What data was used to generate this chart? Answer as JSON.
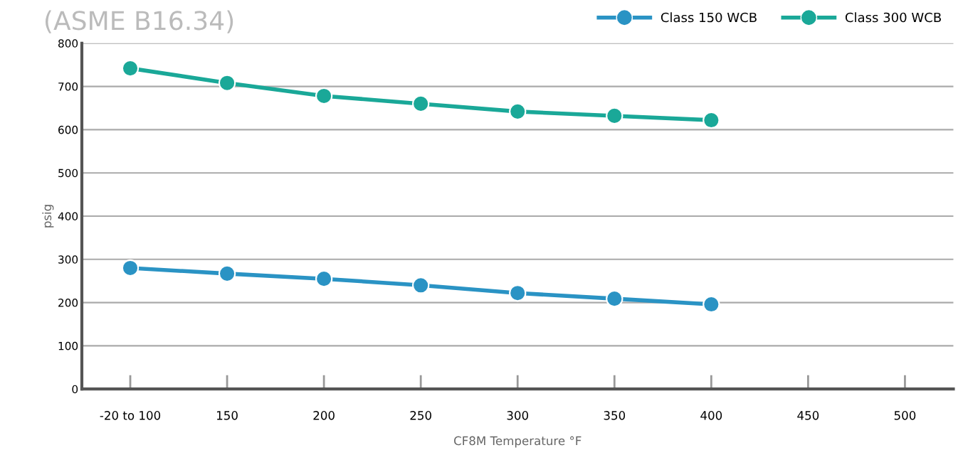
{
  "chart_data": {
    "type": "line",
    "title": "(ASME B16.34)",
    "xlabel": "CF8M Temperature °F",
    "ylabel": "psig",
    "categories": [
      "-20 to 100",
      "150",
      "200",
      "250",
      "300",
      "350",
      "400",
      "450",
      "500"
    ],
    "series": [
      {
        "name": "Class 150 WCB",
        "color": "#2a93c4",
        "values": [
          280,
          267,
          255,
          240,
          222,
          209,
          196,
          null,
          null
        ]
      },
      {
        "name": "Class 300 WCB",
        "color": "#1aa898",
        "values": [
          742,
          708,
          678,
          660,
          642,
          632,
          622,
          null,
          null
        ]
      }
    ],
    "ylim": [
      0,
      800
    ],
    "yticks": [
      0,
      100,
      200,
      300,
      400,
      500,
      600,
      700,
      800
    ],
    "grid": "y",
    "legend": "top right",
    "marker": "circle",
    "line_style": "solid"
  }
}
